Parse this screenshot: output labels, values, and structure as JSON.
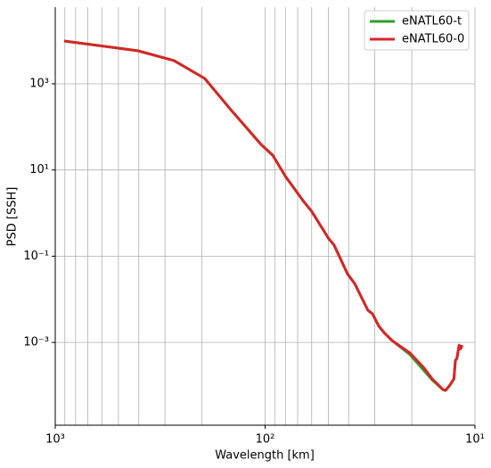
{
  "chart_data": {
    "type": "line",
    "xlabel": "Wavelength [km]",
    "ylabel": "PSD [SSH]",
    "xscale": "log",
    "yscale": "log",
    "grid": true,
    "legend": "upper right",
    "xlim": [
      1000,
      10
    ],
    "ylim": [
      1.2e-05,
      60000
    ],
    "xticks": [
      {
        "value": 1000,
        "label": "10³"
      },
      {
        "value": 100,
        "label": "10²"
      },
      {
        "value": 10,
        "label": "10¹"
      }
    ],
    "xminor_ticks": [
      900,
      800,
      700,
      600,
      500,
      400,
      300,
      200,
      90,
      80,
      70,
      60,
      50,
      40,
      30,
      20
    ],
    "yticks": [
      {
        "value": 0.001,
        "label": "10⁻³"
      },
      {
        "value": 0.1,
        "label": "10⁻¹"
      },
      {
        "value": 10,
        "label": "10¹"
      },
      {
        "value": 1000,
        "label": "10³"
      }
    ],
    "x": [
      907,
      403,
      272,
      194,
      147,
      104.5,
      92,
      80,
      66,
      60,
      50,
      46.9,
      40.5,
      37.4,
      32.4,
      30.8,
      28.7,
      26.9,
      24.8,
      20.4,
      17.6,
      16.0,
      14.2,
      13.8,
      13.2,
      12.6,
      12.4,
      12.2,
      11.9,
      11.7,
      11.5
    ],
    "series": [
      {
        "name": "eNATL60-t",
        "color": "#2ca02c",
        "values": [
          9840,
          5820,
          3450,
          1330,
          263,
          39,
          22,
          7.1,
          1.95,
          1.1,
          0.264,
          0.18,
          0.039,
          0.023,
          0.0056,
          0.0046,
          0.00237,
          0.00162,
          0.0011,
          0.00052,
          0.00023,
          0.000135,
          8e-05,
          7.7e-05,
          0.0001,
          0.000143,
          0.00038,
          0.00042,
          0.00086,
          0.00071,
          0.00086
        ]
      },
      {
        "name": "eNATL60-0",
        "color": "#d62728",
        "values": [
          9840,
          5820,
          3450,
          1330,
          263,
          39,
          22,
          7.1,
          1.95,
          1.1,
          0.264,
          0.18,
          0.039,
          0.023,
          0.0056,
          0.0046,
          0.00237,
          0.00162,
          0.0011,
          0.000567,
          0.000265,
          0.000143,
          8.05e-05,
          7.7e-05,
          0.0001,
          0.000143,
          0.00038,
          0.00042,
          0.00086,
          0.00071,
          0.00086
        ]
      }
    ]
  }
}
